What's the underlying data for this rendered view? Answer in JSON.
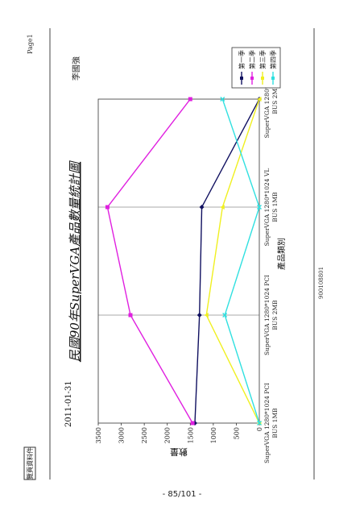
{
  "header": {
    "page_label": "Page1",
    "stamp_label": "覽頁資料件",
    "date": "2011-01-31",
    "author": "李國強",
    "doc_code": "900108801"
  },
  "footer": {
    "page_number": "- 85/101 -"
  },
  "colors": {
    "series": [
      "#101060",
      "#e020e0",
      "#f0f020",
      "#30e0e0"
    ],
    "grid": "#555555",
    "axis": "#333333"
  },
  "chart_data": {
    "type": "line",
    "title": "民國90年SuperVGA產品數量統計圖",
    "xlabel": "產品類別",
    "ylabel": "數量",
    "categories": [
      "SuperVGA 1280*1024 PCI BUS 1MB",
      "SuperVGA 1280*1024 PCI BUS 2MB",
      "SuperVGA 1280*1024 VL BUS 1MB",
      "SuperVGA 1280*1024 VL BUS 2MB"
    ],
    "ylim": [
      0,
      3500
    ],
    "yticks": [
      "0",
      "500",
      "1000",
      "1500",
      "2000",
      "2500",
      "3000",
      "3500"
    ],
    "grid": true,
    "legend_position": "top-right",
    "series": [
      {
        "name": "第一季",
        "values": [
          1400,
          1300,
          1250,
          0
        ],
        "marker": "diamond"
      },
      {
        "name": "第二季",
        "values": [
          1450,
          2800,
          3300,
          1500
        ],
        "marker": "square"
      },
      {
        "name": "第三季",
        "values": [
          0,
          1150,
          800,
          0
        ],
        "marker": "triangle"
      },
      {
        "name": "第四季",
        "values": [
          0,
          750,
          0,
          800
        ],
        "marker": "x"
      }
    ]
  }
}
